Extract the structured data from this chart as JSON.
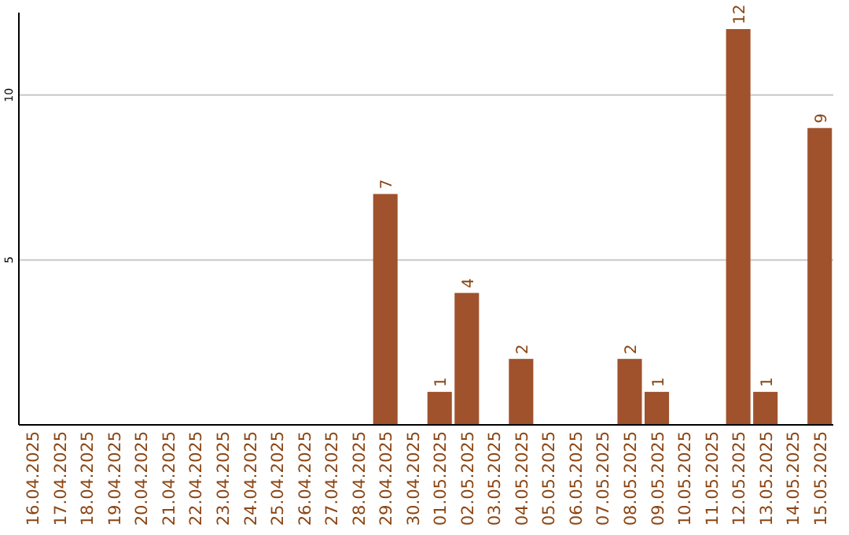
{
  "chart_data": {
    "type": "bar",
    "categories": [
      "16.04.2025",
      "17.04.2025",
      "18.04.2025",
      "19.04.2025",
      "20.04.2025",
      "21.04.2025",
      "22.04.2025",
      "23.04.2025",
      "24.04.2025",
      "25.04.2025",
      "26.04.2025",
      "27.04.2025",
      "28.04.2025",
      "29.04.2025",
      "30.04.2025",
      "01.05.2025",
      "02.05.2025",
      "03.05.2025",
      "04.05.2025",
      "05.05.2025",
      "06.05.2025",
      "07.05.2025",
      "08.05.2025",
      "09.05.2025",
      "10.05.2025",
      "11.05.2025",
      "12.05.2025",
      "13.05.2025",
      "14.05.2025",
      "15.05.2025"
    ],
    "values": [
      0,
      0,
      0,
      0,
      0,
      0,
      0,
      0,
      0,
      0,
      0,
      0,
      0,
      7,
      0,
      1,
      4,
      0,
      2,
      0,
      0,
      0,
      2,
      1,
      0,
      0,
      12,
      1,
      0,
      9
    ],
    "value_labels": [
      null,
      null,
      null,
      null,
      null,
      null,
      null,
      null,
      null,
      null,
      null,
      null,
      null,
      "7",
      null,
      "1",
      "4",
      null,
      "2",
      null,
      null,
      null,
      "2",
      "1",
      null,
      null,
      "12",
      "1",
      null,
      "9"
    ],
    "color": "#a0522d",
    "ylim": [
      0,
      12.5
    ],
    "yticks": [
      5,
      10
    ],
    "grid": "y"
  }
}
